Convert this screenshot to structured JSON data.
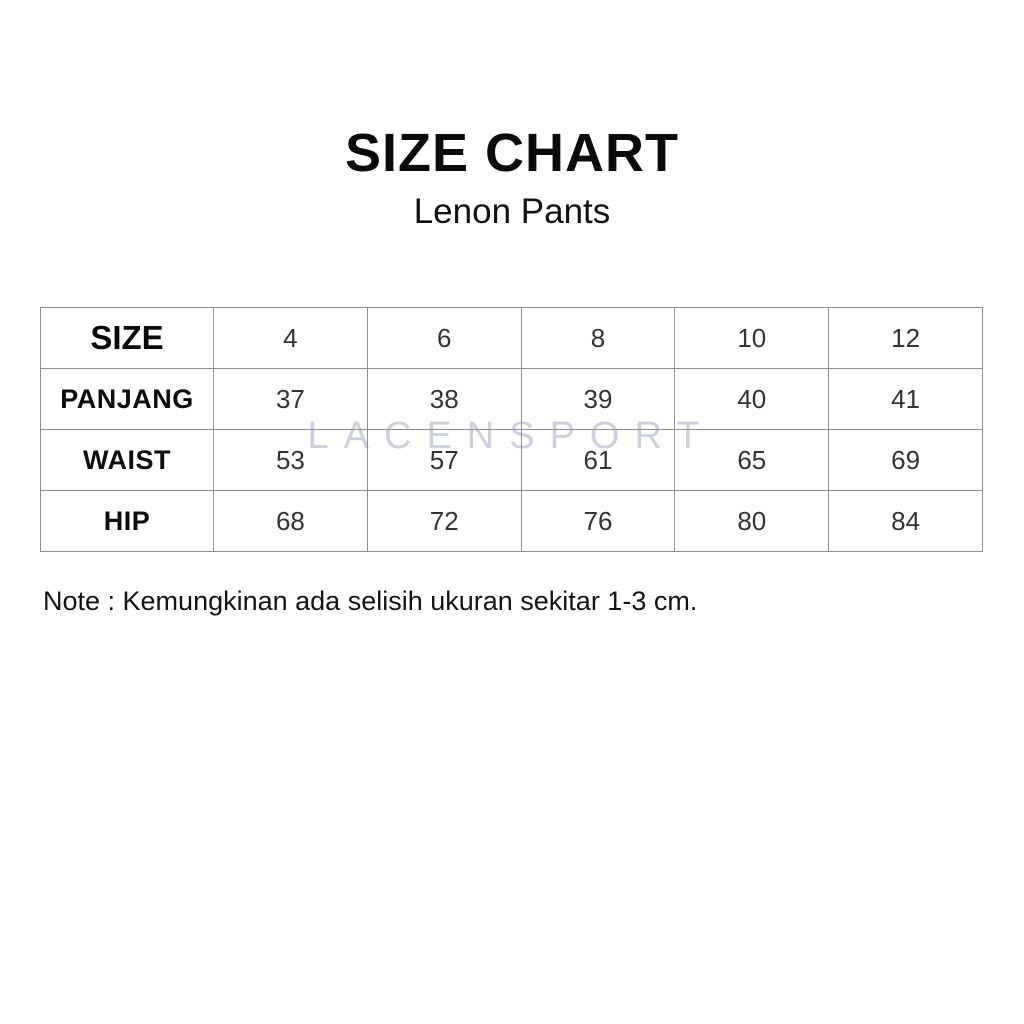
{
  "header": {
    "title": "SIZE CHART",
    "subtitle": "Lenon Pants"
  },
  "table": {
    "corner_label": "SIZE",
    "sizes": [
      "4",
      "6",
      "8",
      "10",
      "12"
    ],
    "rows": [
      {
        "label": "PANJANG",
        "values": [
          "37",
          "38",
          "39",
          "40",
          "41"
        ]
      },
      {
        "label": "WAIST",
        "values": [
          "53",
          "57",
          "61",
          "65",
          "69"
        ]
      },
      {
        "label": "HIP",
        "values": [
          "68",
          "72",
          "76",
          "80",
          "84"
        ]
      }
    ]
  },
  "watermark": {
    "text": "LACENSPORT"
  },
  "note": {
    "text": "Note : Kemungkinan ada selisih ukuran sekitar 1-3 cm."
  },
  "colors": {
    "background": "#ffffff",
    "table_border": "#8e8e8e",
    "watermark": "#cdd1de",
    "title_text": "#0a0a0a",
    "value_text": "#333333"
  },
  "chart_data": {
    "type": "table",
    "title": "SIZE CHART",
    "subtitle": "Lenon Pants",
    "columns": [
      "SIZE",
      "4",
      "6",
      "8",
      "10",
      "12"
    ],
    "rows": [
      [
        "PANJANG",
        37,
        38,
        39,
        40,
        41
      ],
      [
        "WAIST",
        53,
        57,
        61,
        65,
        69
      ],
      [
        "HIP",
        68,
        72,
        76,
        80,
        84
      ]
    ],
    "note": "Note : Kemungkinan ada selisih ukuran sekitar 1-3 cm.",
    "layout_hints": {
      "header_row": "sizes across top",
      "label_column": "measurements down left",
      "grid": true,
      "watermark_text": "LACENSPORT"
    }
  }
}
